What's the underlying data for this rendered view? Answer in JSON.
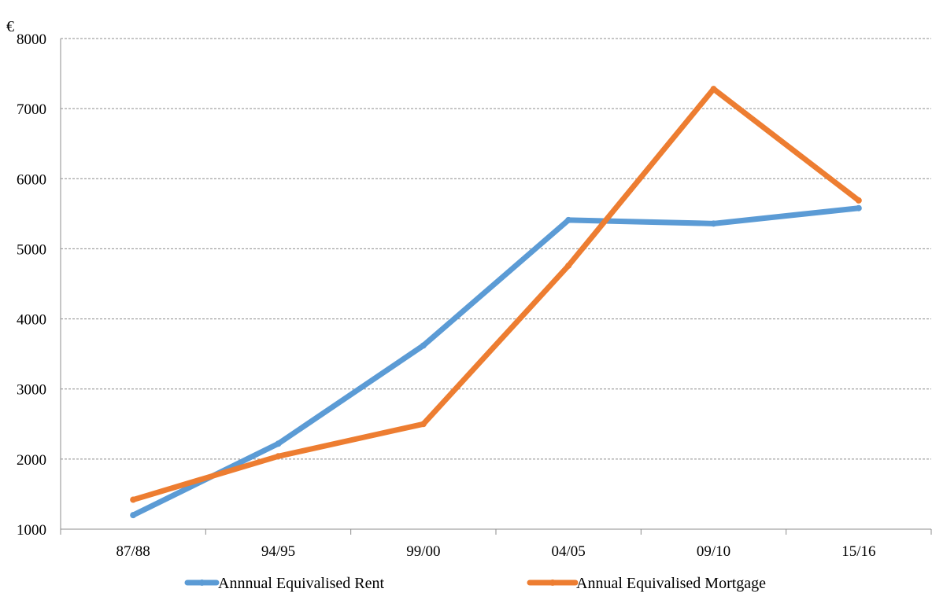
{
  "chart_data": {
    "type": "line",
    "ylabel": "€",
    "xlabel": "",
    "title": "",
    "categories": [
      "87/88",
      "94/95",
      "99/00",
      "04/05",
      "09/10",
      "15/16"
    ],
    "ylim": [
      1000,
      8000
    ],
    "yticks": [
      "1000",
      "2000",
      "3000",
      "4000",
      "5000",
      "6000",
      "7000",
      "8000"
    ],
    "grid": "horizontal dashed",
    "legend_position": "bottom",
    "series": [
      {
        "name": "Annnual Equivalised Rent",
        "color": "#5b9bd5",
        "values": [
          1200,
          2220,
          3620,
          5410,
          5360,
          5580
        ]
      },
      {
        "name": "Annual Equivalised Mortgage",
        "color": "#ed7d31",
        "values": [
          1420,
          2040,
          2500,
          4760,
          7280,
          5690
        ]
      }
    ]
  }
}
